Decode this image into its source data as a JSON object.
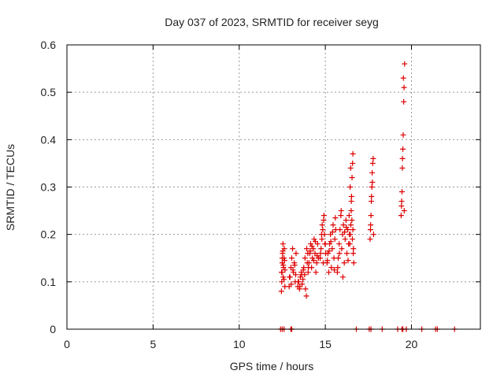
{
  "chart_data": {
    "type": "scatter",
    "title": "Day 037 of 2023, SRMTID for receiver seyg",
    "xlabel": "GPS time / hours",
    "ylabel": "SRMTID / TECUs",
    "xlim": [
      0,
      24
    ],
    "ylim": [
      0,
      0.6
    ],
    "xticks": [
      0,
      5,
      10,
      15,
      20
    ],
    "yticks": [
      0,
      0.1,
      0.2,
      0.3,
      0.4,
      0.5,
      0.6
    ],
    "ytick_labels": [
      "0",
      "0.1",
      "0.2",
      "0.3",
      "0.4",
      "0.5",
      "0.6"
    ],
    "grid": true,
    "marker": "+",
    "color": "#dd0000",
    "series": [
      {
        "name": "SRMTID",
        "x": [
          12.45,
          12.47,
          12.48,
          12.5,
          12.52,
          12.54,
          12.55,
          12.57,
          12.6,
          12.62,
          12.65,
          12.46,
          12.5,
          12.53,
          12.56,
          12.6,
          12.63,
          12.66,
          12.9,
          12.95,
          13.0,
          13.05,
          13.1,
          13.15,
          13.2,
          13.25,
          13.3,
          12.92,
          13.02,
          13.12,
          13.22,
          13.28,
          13.4,
          13.45,
          13.5,
          13.55,
          13.6,
          13.65,
          13.7,
          13.75,
          13.8,
          13.85,
          13.9,
          13.95,
          13.42,
          13.52,
          13.62,
          13.72,
          13.82,
          13.92,
          13.98,
          14.0,
          14.05,
          14.1,
          14.15,
          14.2,
          14.25,
          14.3,
          14.35,
          14.4,
          14.45,
          14.5,
          14.55,
          14.6,
          14.02,
          14.12,
          14.22,
          14.32,
          14.42,
          14.52,
          14.7,
          14.75,
          14.8,
          14.85,
          14.9,
          14.95,
          15.0,
          14.72,
          14.82,
          14.92,
          15.02,
          14.78,
          14.88,
          14.98,
          15.1,
          15.15,
          15.2,
          15.25,
          15.3,
          15.35,
          15.4,
          15.45,
          15.5,
          15.55,
          15.6,
          15.12,
          15.22,
          15.32,
          15.42,
          15.52,
          15.58,
          15.7,
          15.75,
          15.8,
          15.85,
          15.9,
          15.95,
          16.0,
          16.05,
          16.1,
          16.15,
          16.2,
          16.25,
          16.3,
          16.35,
          16.4,
          15.72,
          15.82,
          15.92,
          16.02,
          16.12,
          16.22,
          16.32,
          16.38,
          16.42,
          16.45,
          16.48,
          16.5,
          16.52,
          16.55,
          16.58,
          16.6,
          16.62,
          16.65,
          16.44,
          16.47,
          16.51,
          16.54,
          16.57,
          16.6,
          16.63,
          17.6,
          17.62,
          17.65,
          17.67,
          17.7,
          17.72,
          17.75,
          17.78,
          17.8,
          17.63,
          17.68,
          17.73,
          19.4,
          19.42,
          19.45,
          19.47,
          19.5,
          19.52,
          19.55,
          19.57,
          19.6,
          19.43,
          19.48,
          19.53,
          19.58,
          12.4,
          12.5,
          12.6,
          13.0,
          13.05,
          16.8,
          17.55,
          17.65,
          18.3,
          19.2,
          19.45,
          19.5,
          19.7,
          20.6,
          21.4,
          21.5,
          22.5
        ],
        "y": [
          0.08,
          0.1,
          0.12,
          0.14,
          0.16,
          0.18,
          0.11,
          0.13,
          0.15,
          0.17,
          0.09,
          0.12,
          0.15,
          0.165,
          0.135,
          0.105,
          0.145,
          0.125,
          0.09,
          0.11,
          0.13,
          0.15,
          0.17,
          0.12,
          0.14,
          0.1,
          0.16,
          0.11,
          0.095,
          0.125,
          0.135,
          0.115,
          0.09,
          0.1,
          0.085,
          0.11,
          0.12,
          0.095,
          0.105,
          0.13,
          0.115,
          0.085,
          0.07,
          0.14,
          0.1,
          0.09,
          0.115,
          0.125,
          0.15,
          0.17,
          0.16,
          0.12,
          0.14,
          0.16,
          0.18,
          0.13,
          0.15,
          0.17,
          0.19,
          0.16,
          0.12,
          0.14,
          0.18,
          0.15,
          0.13,
          0.165,
          0.175,
          0.145,
          0.185,
          0.155,
          0.15,
          0.17,
          0.19,
          0.21,
          0.23,
          0.2,
          0.18,
          0.16,
          0.22,
          0.24,
          0.16,
          0.2,
          0.14,
          0.18,
          0.14,
          0.16,
          0.12,
          0.18,
          0.2,
          0.13,
          0.17,
          0.22,
          0.15,
          0.19,
          0.21,
          0.145,
          0.165,
          0.185,
          0.205,
          0.125,
          0.235,
          0.12,
          0.15,
          0.18,
          0.21,
          0.24,
          0.17,
          0.2,
          0.22,
          0.14,
          0.19,
          0.23,
          0.16,
          0.21,
          0.18,
          0.2,
          0.13,
          0.16,
          0.25,
          0.11,
          0.205,
          0.215,
          0.145,
          0.24,
          0.18,
          0.2,
          0.22,
          0.25,
          0.28,
          0.32,
          0.35,
          0.37,
          0.16,
          0.14,
          0.3,
          0.34,
          0.27,
          0.23,
          0.19,
          0.21,
          0.17,
          0.19,
          0.21,
          0.24,
          0.27,
          0.3,
          0.33,
          0.35,
          0.36,
          0.2,
          0.22,
          0.28,
          0.31,
          0.24,
          0.26,
          0.29,
          0.34,
          0.38,
          0.41,
          0.48,
          0.51,
          0.56,
          0.27,
          0.36,
          0.53,
          0.25,
          0,
          0,
          0,
          0,
          0,
          0,
          0,
          0,
          0,
          0,
          0,
          0,
          0,
          0,
          0,
          0,
          0
        ]
      }
    ]
  }
}
